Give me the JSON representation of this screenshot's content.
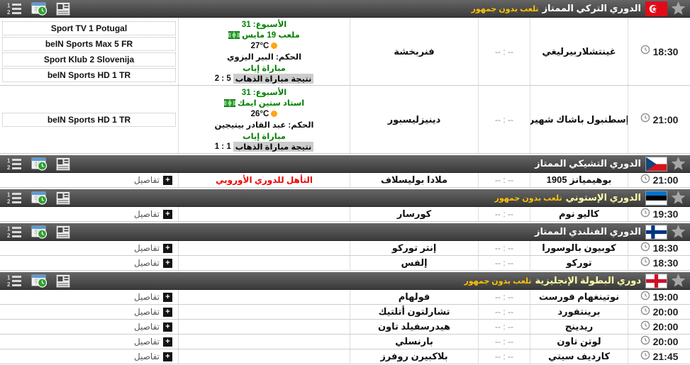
{
  "ui": {
    "details_label": "تفاصيل",
    "no_crowd_label": "تلعب بدون جمهور",
    "score_placeholder": "-- : --"
  },
  "colors": {
    "header_bg": "#4a4a4a",
    "league_name_default": "#ffffff",
    "league_name_highlight": "#ffffaa",
    "no_crowd_yellow": "#ffc400",
    "detail_green": "#008000",
    "note_red": "#f00000",
    "sun_orange": "#ffa516",
    "result_badge_bg": "#cccccc",
    "turkey_flag_red": "#e30a17",
    "czech_flag_blue": "#11457e",
    "estonia_flag_blue": "#0072ce",
    "finland_cross_blue": "#003580",
    "england_cross_red": "#ce1124"
  },
  "header_icons": [
    "ordered-list-icon",
    "calendar-check-icon",
    "news-icon"
  ],
  "leagues": [
    {
      "name": "الدوري التركي الممتاز",
      "flag": "turkey",
      "no_crowd": true,
      "name_color": "#ffffff",
      "matches": [
        {
          "time": "18:30",
          "home": "غينتشلاربيرليغي",
          "score": "-- : --",
          "away": "فنربخشة",
          "expanded": true,
          "details": {
            "week": "الأسبوع: 31",
            "stadium": "ملعب 19 مايس",
            "temp": "27°C",
            "referee": "الحكم: البير اليزوي",
            "leg": "مباراة إياب",
            "first_leg_label": "نتيجة مباراة الذهاب",
            "first_leg_score": "5 : 2"
          },
          "channels": [
            "Sport TV 1 Potugal",
            "beIN Sports Max 5 FR",
            "Sport Klub 2 Slovenija",
            "beIN Sports HD 1 TR"
          ]
        },
        {
          "time": "21:00",
          "home": "إسطنبول باشاك شهير",
          "score": "-- : --",
          "away": "دينيزليسبور",
          "expanded": true,
          "details": {
            "week": "الأسبوع: 31",
            "stadium": "استاد ستين ايمك",
            "temp": "26°C",
            "referee": "الحكم: عبد القادر بيتيجين",
            "leg": "مباراة إياب",
            "first_leg_label": "نتيجة مباراة الذهاب",
            "first_leg_score": "1 : 1"
          },
          "channels": [
            "beIN Sports HD 1 TR"
          ]
        }
      ]
    },
    {
      "name": "الدوري التشيكي الممتاز",
      "flag": "czech",
      "no_crowd": false,
      "name_color": "#ffffff",
      "matches": [
        {
          "time": "21:00",
          "home": "بوهيميانز 1905",
          "score": "-- : --",
          "away": "ملادا بوليسلاف",
          "note": "التأهل للدوري الأوروبي"
        }
      ]
    },
    {
      "name": "الدوري الإستوني",
      "flag": "estonia",
      "no_crowd": true,
      "name_color": "#ffffaa",
      "matches": [
        {
          "time": "19:30",
          "home": "كاليو نوم",
          "score": "-- : --",
          "away": "كورسار"
        }
      ]
    },
    {
      "name": "الدوري الفنلندي الممتاز",
      "flag": "finland",
      "no_crowd": false,
      "name_color": "#ffffff",
      "matches": [
        {
          "time": "18:30",
          "home": "كوبيون بالوسورا",
          "score": "-- : --",
          "away": "إنتر توركو"
        },
        {
          "time": "18:30",
          "home": "توركو",
          "score": "-- : --",
          "away": "إلفس"
        }
      ]
    },
    {
      "name": "دوري البطولة الإنجليزية",
      "flag": "england",
      "no_crowd": true,
      "name_color": "#ffffaa",
      "matches": [
        {
          "time": "19:00",
          "home": "نوتينغهام فورست",
          "score": "-- : --",
          "away": "فولهام"
        },
        {
          "time": "20:00",
          "home": "برينتفورد",
          "score": "-- : --",
          "away": "تشارلتون أتلتيك"
        },
        {
          "time": "20:00",
          "home": "ريدينج",
          "score": "-- : --",
          "away": "هيدرسفيلد تاون"
        },
        {
          "time": "20:00",
          "home": "لوتن تاون",
          "score": "-- : --",
          "away": "بارنسلي"
        },
        {
          "time": "21:45",
          "home": "كارديف سيتي",
          "score": "-- : --",
          "away": "بلاكبيرن روفرز"
        }
      ]
    }
  ]
}
